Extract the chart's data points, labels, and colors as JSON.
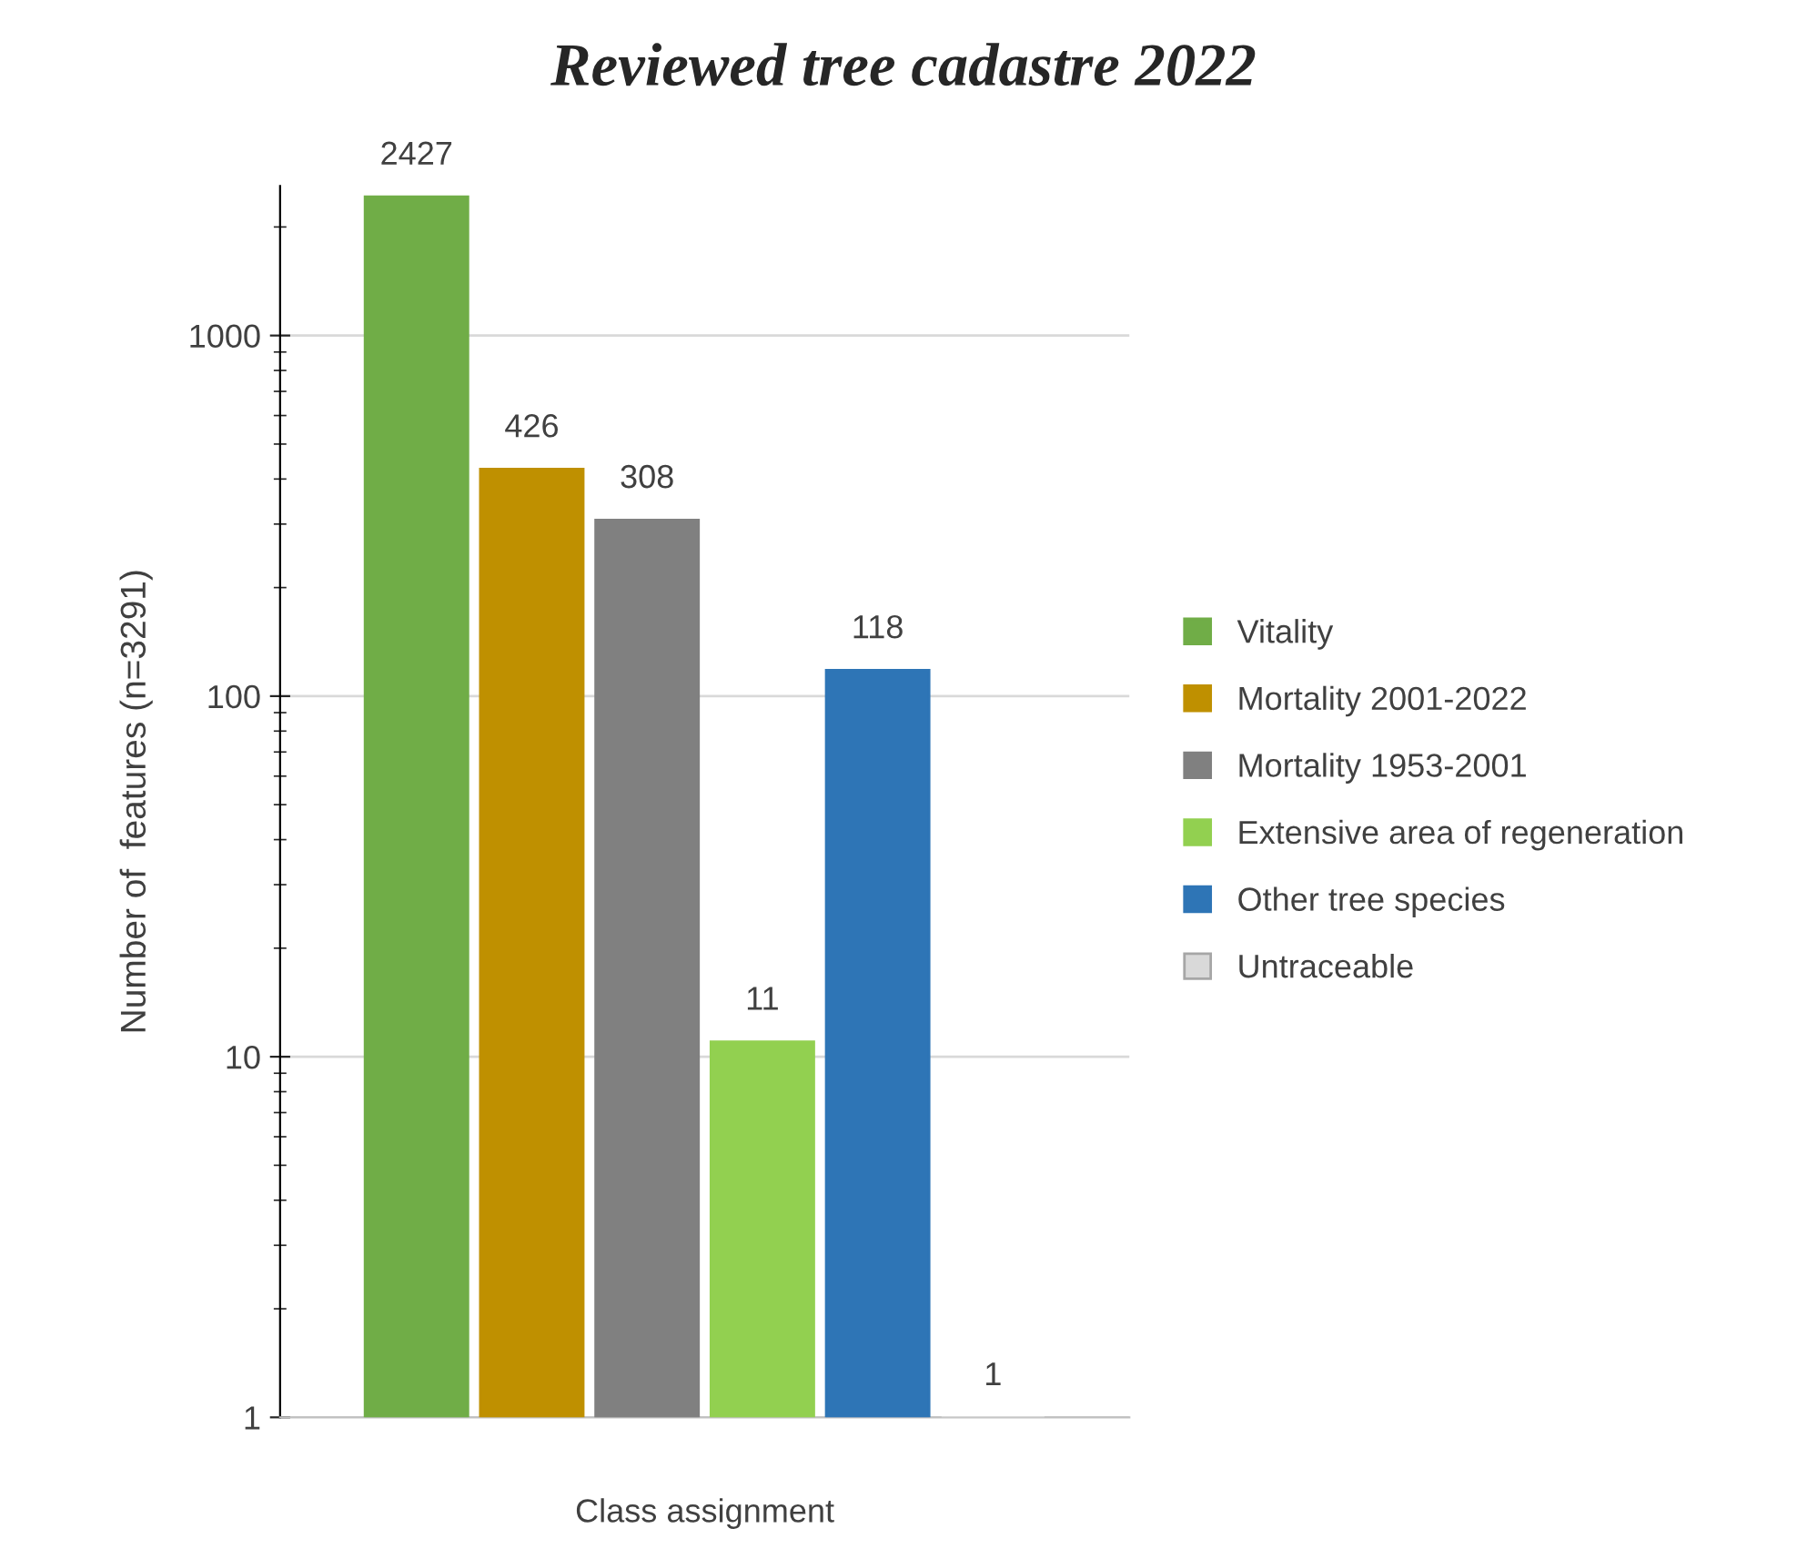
{
  "chart_data": {
    "type": "bar",
    "title": "Reviewed tree cadastre 2022",
    "xlabel": "Class assignment",
    "ylabel": "Number of  features (n=3291)",
    "categories": [
      null
    ],
    "series": [
      {
        "name": "Vitality",
        "color": "#70ad47",
        "values": [
          2427
        ]
      },
      {
        "name": "Mortality 2001-2022",
        "color": "#bf9000",
        "values": [
          426
        ]
      },
      {
        "name": "Mortality 1953-2001",
        "color": "#808080",
        "values": [
          308
        ]
      },
      {
        "name": "Extensive area of regeneration",
        "color": "#92d050",
        "values": [
          11
        ]
      },
      {
        "name": "Other tree species",
        "color": "#2e75b6",
        "values": [
          118
        ]
      },
      {
        "name": "Untraceable",
        "color": "#d9d9d9",
        "values": [
          1
        ]
      }
    ],
    "log": true,
    "ylim": [
      1,
      2600
    ],
    "yticks": [
      1,
      10,
      100,
      1000
    ],
    "grid": "y",
    "legend": "right",
    "data_labels": true
  }
}
